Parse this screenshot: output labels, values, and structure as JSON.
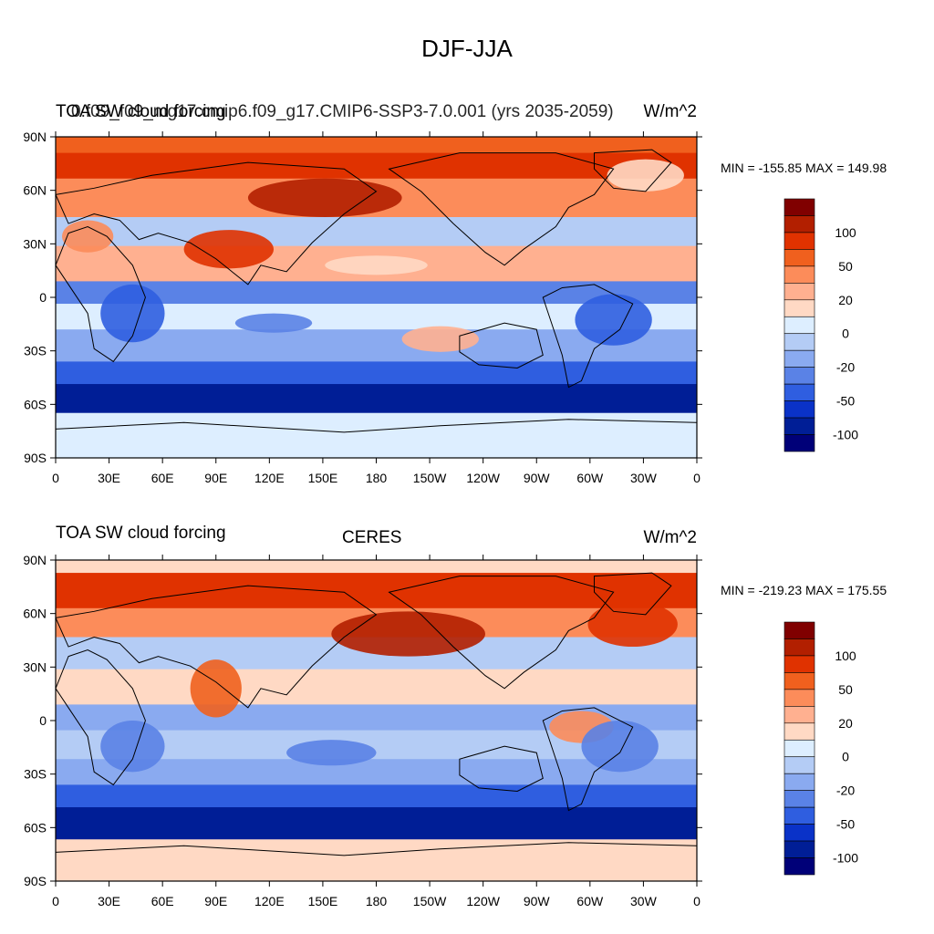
{
  "figure": {
    "title": "DJF-JJA"
  },
  "panels": [
    {
      "left_label": "TOA SW cloud forcing",
      "left_label_overlap": "0.f09_f09_mg17.cmip6.f09_g17.CMIP6-SSP3-7.0.001 (yrs 2035-2059)",
      "center_label": "",
      "units": "W/m^2",
      "stats": "MIN = -155.85 MAX = 149.98"
    },
    {
      "left_label": "TOA SW cloud forcing",
      "center_label": "CERES",
      "units": "W/m^2",
      "stats": "MIN = -219.23 MAX = 175.55"
    }
  ],
  "axes": {
    "lat_ticks": [
      "90N",
      "60N",
      "30N",
      "0",
      "30S",
      "60S",
      "90S"
    ],
    "lon_ticks": [
      "0",
      "30E",
      "60E",
      "90E",
      "120E",
      "150E",
      "180",
      "150W",
      "120W",
      "90W",
      "60W",
      "30W",
      "0"
    ]
  },
  "colorbar": {
    "labels": [
      "100",
      "50",
      "20",
      "0",
      "-20",
      "-50",
      "-100"
    ],
    "colors": [
      "#800000",
      "#b21f00",
      "#e03200",
      "#f0601e",
      "#fc8c5a",
      "#ffb090",
      "#ffd9c4",
      "#ddeeff",
      "#b4ccf5",
      "#8aaaf0",
      "#5a82e6",
      "#2f5ee0",
      "#0a32c8",
      "#001e96",
      "#000078"
    ]
  },
  "chart_data": {
    "type": "heatmap",
    "title": "DJF-JJA",
    "colorbar_levels": [
      100,
      50,
      20,
      0,
      -20,
      -50,
      -100
    ],
    "panels": [
      {
        "name": "",
        "min": -155.85,
        "max": 149.98,
        "units": "W/m^2"
      },
      {
        "name": "CERES",
        "min": -219.23,
        "max": 175.55,
        "units": "W/m^2"
      }
    ]
  }
}
